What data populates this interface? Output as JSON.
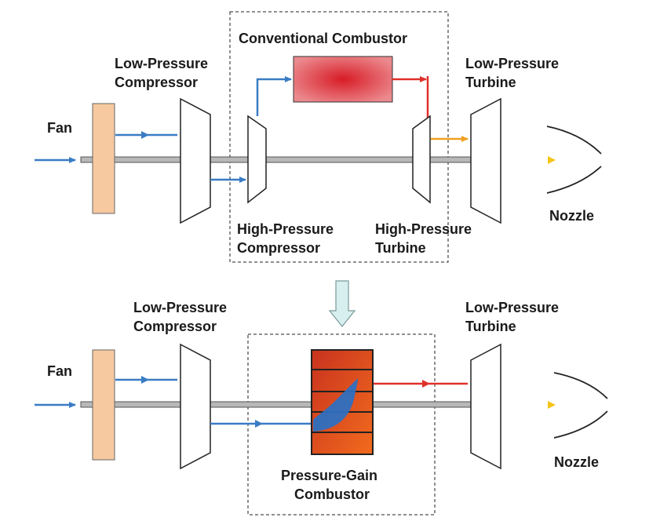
{
  "top": {
    "fan": "Fan",
    "lpc_line1": "Low-Pressure",
    "lpc_line2": "Compressor",
    "combustor": "Conventional Combustor",
    "lpt_line1": "Low-Pressure",
    "lpt_line2": "Turbine",
    "hpc_line1": "High-Pressure",
    "hpc_line2": "Compressor",
    "hpt_line1": "High-Pressure",
    "hpt_line2": "Turbine",
    "nozzle": "Nozzle"
  },
  "bottom": {
    "fan": "Fan",
    "lpc_line1": "Low-Pressure",
    "lpc_line2": "Compressor",
    "lpt_line1": "Low-Pressure",
    "lpt_line2": "Turbine",
    "pgc_line1": "Pressure-Gain",
    "pgc_line2": "Combustor",
    "nozzle": "Nozzle"
  },
  "colors": {
    "cold_flow": "#3a7cc4",
    "hot_flow": "#e0302a",
    "warm_flow": "#f0a020",
    "exhaust": "#f5c518",
    "fan_fill": "#f7c9a0",
    "shaft": "#b8b8b8",
    "transition_arrow": "#d8efef"
  }
}
